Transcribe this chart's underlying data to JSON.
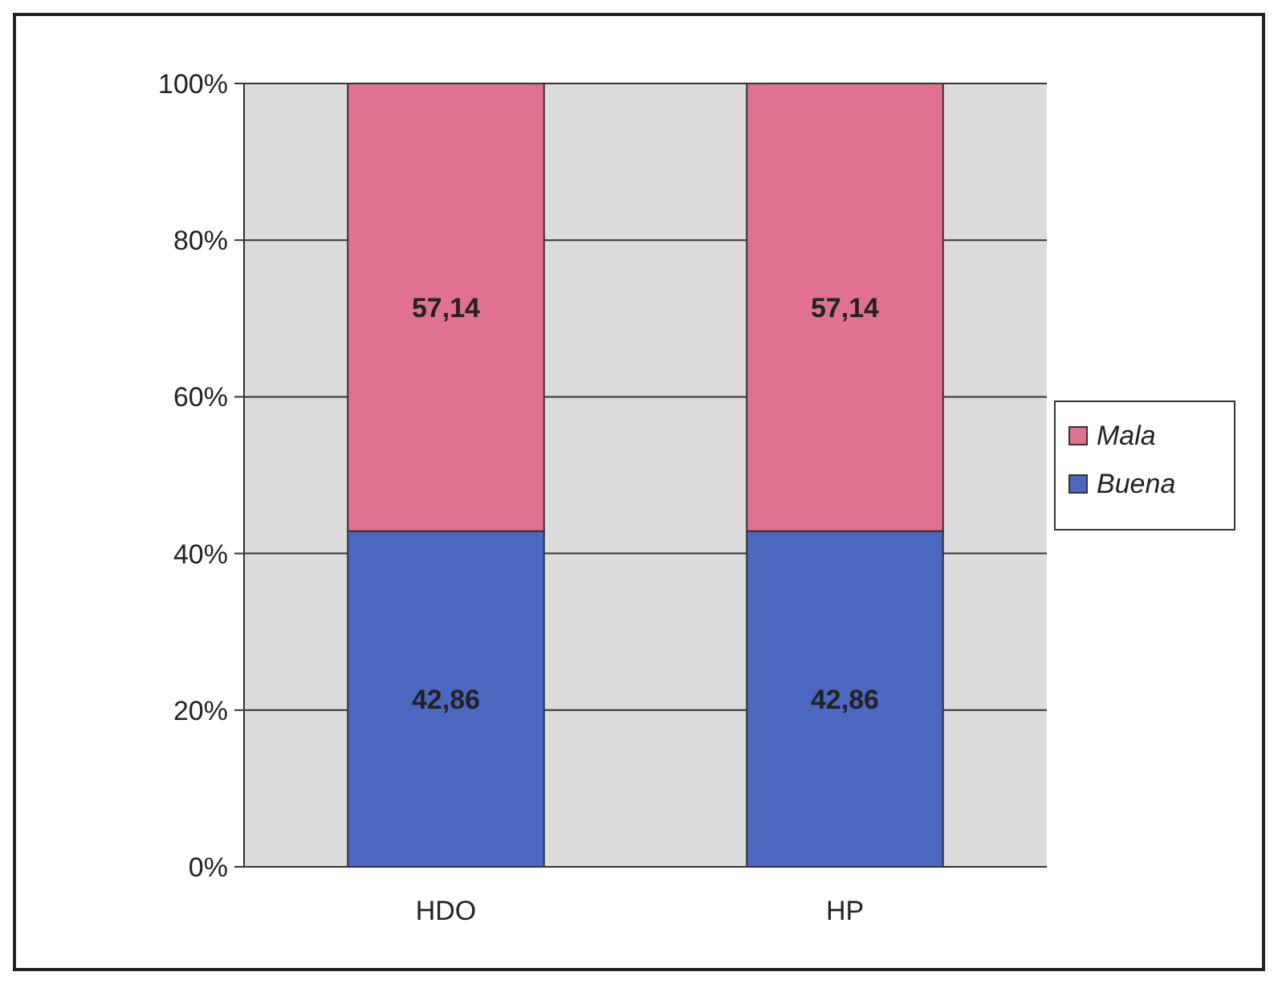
{
  "chart_data": {
    "type": "bar",
    "stacked": true,
    "categories": [
      "HDO",
      "HP"
    ],
    "series": [
      {
        "name": "Buena",
        "color": "#4a68c0",
        "values": [
          42.86,
          42.86
        ],
        "value_labels": [
          "42,86",
          "42,86"
        ]
      },
      {
        "name": "Mala",
        "color": "#e0728f",
        "values": [
          57.14,
          57.14
        ],
        "value_labels": [
          "57,14",
          "57,14"
        ]
      }
    ],
    "ylim": [
      0,
      100
    ],
    "yticks": [
      {
        "value": 0,
        "label": "0%"
      },
      {
        "value": 20,
        "label": "20%"
      },
      {
        "value": 40,
        "label": "40%"
      },
      {
        "value": 60,
        "label": "60%"
      },
      {
        "value": 80,
        "label": "80%"
      },
      {
        "value": 100,
        "label": "100%"
      }
    ],
    "grid": "y",
    "legend": "right"
  }
}
